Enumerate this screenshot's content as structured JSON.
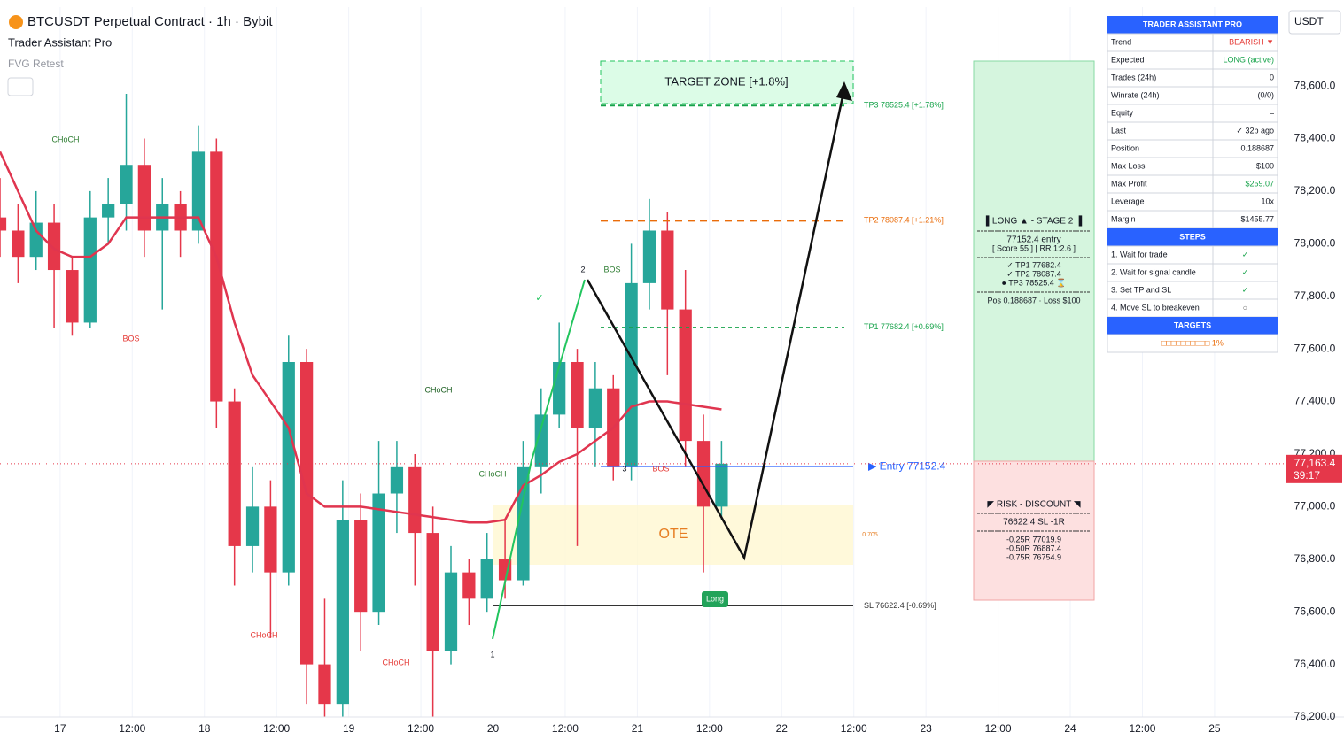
{
  "chart_data": {
    "type": "candlestick",
    "title": "BTCUSDT Perpetual Contract · 1h · Bybit",
    "subtitle": "Trader Assistant Pro",
    "indicator": "FVG Retest",
    "currency": "USDT",
    "x": [
      -10,
      -7,
      -4,
      -1,
      2,
      5,
      8,
      11,
      14,
      17,
      20,
      23,
      26,
      29,
      32,
      35,
      38,
      41,
      44,
      47,
      50,
      53,
      56,
      59,
      62,
      65,
      68,
      71,
      74,
      77,
      80,
      83,
      86,
      89,
      92,
      95,
      98,
      101,
      104,
      107,
      110
    ],
    "open": [
      78100,
      78050,
      77950,
      78080,
      77900,
      77700,
      78100,
      78150,
      78300,
      78050,
      78150,
      78050,
      78350,
      77400,
      76850,
      77000,
      76750,
      77550,
      76400,
      76250,
      76950,
      76600,
      77050,
      77150,
      76900,
      76450,
      76750,
      76650,
      76800,
      76720,
      77150,
      77350,
      77550,
      77300,
      77450,
      77150,
      77850,
      78050,
      77750,
      77250,
      77000
    ],
    "high": [
      78250,
      78150,
      78200,
      78150,
      77950,
      78200,
      78250,
      78570,
      78400,
      78250,
      78200,
      78450,
      78400,
      77450,
      77150,
      77100,
      77650,
      77600,
      76650,
      77100,
      77050,
      77250,
      77250,
      77200,
      77000,
      76850,
      76800,
      76900,
      76950,
      77250,
      77450,
      77700,
      77600,
      77550,
      77500,
      78000,
      78170,
      78120,
      77900,
      77350,
      77250
    ],
    "low": [
      77950,
      77850,
      77900,
      77680,
      77650,
      77680,
      78000,
      78050,
      77950,
      77750,
      77950,
      78000,
      77300,
      76700,
      76750,
      76500,
      76700,
      76250,
      76200,
      76200,
      76450,
      76550,
      76900,
      76700,
      76200,
      76400,
      76550,
      76600,
      76650,
      76700,
      77050,
      77300,
      76850,
      77150,
      77100,
      77100,
      77750,
      77500,
      77150,
      76750,
      76950
    ],
    "close": [
      78050,
      77950,
      78080,
      77900,
      77700,
      78100,
      78150,
      78300,
      78050,
      78150,
      78050,
      78350,
      77400,
      76850,
      77000,
      76750,
      77550,
      76400,
      76250,
      76950,
      76600,
      77050,
      77150,
      76900,
      76450,
      76750,
      76650,
      76800,
      76720,
      77150,
      77350,
      77550,
      77300,
      77450,
      77150,
      77850,
      78050,
      77750,
      77250,
      77000,
      77163.4
    ],
    "ma": {
      "color": "#e0354f",
      "values": [
        78350,
        78200,
        78050,
        77980,
        77950,
        77950,
        78000,
        78100,
        78100,
        78100,
        78100,
        78100,
        77950,
        77700,
        77500,
        77400,
        77300,
        77050,
        77000,
        77000,
        77000,
        76990,
        76980,
        76970,
        76960,
        76950,
        76940,
        76940,
        76950,
        77080,
        77120,
        77170,
        77200,
        77250,
        77300,
        77380,
        77400,
        77400,
        77390,
        77380,
        77370
      ]
    },
    "up_color": "#26a69a",
    "down_color": "#e5374a",
    "xlim": [
      -10,
      203.8
    ],
    "ylim": [
      76200,
      78900
    ],
    "xticks": [
      {
        "value": 0,
        "label": "17"
      },
      {
        "value": 12,
        "label": "12:00"
      },
      {
        "value": 24,
        "label": "18"
      },
      {
        "value": 36,
        "label": "12:00"
      },
      {
        "value": 48,
        "label": "19"
      },
      {
        "value": 60,
        "label": "12:00"
      },
      {
        "value": 72,
        "label": "20"
      },
      {
        "value": 84,
        "label": "12:00"
      },
      {
        "value": 96,
        "label": "21"
      },
      {
        "value": 108,
        "label": "12:00"
      },
      {
        "value": 120,
        "label": "22"
      },
      {
        "value": 132,
        "label": "12:00"
      },
      {
        "value": 144,
        "label": "23"
      },
      {
        "value": 156,
        "label": "12:00"
      },
      {
        "value": 168,
        "label": "24"
      },
      {
        "value": 180,
        "label": "12:00"
      },
      {
        "value": 192,
        "label": "25"
      }
    ],
    "yticks": [
      {
        "value": 76200,
        "label": "76,200.0"
      },
      {
        "value": 76400,
        "label": "76,400.0"
      },
      {
        "value": 76600,
        "label": "76,600.0"
      },
      {
        "value": 76800,
        "label": "76,800.0"
      },
      {
        "value": 77000,
        "label": "77,000.0"
      },
      {
        "value": 77200,
        "label": "77,200.0"
      },
      {
        "value": 77400,
        "label": "77,400.0"
      },
      {
        "value": 77600,
        "label": "77,600.0"
      },
      {
        "value": 77800,
        "label": "77,800.0"
      },
      {
        "value": 78000,
        "label": "78,000.0"
      },
      {
        "value": 78200,
        "label": "78,200.0"
      },
      {
        "value": 78400,
        "label": "78,400.0"
      },
      {
        "value": 78600,
        "label": "78,600.0"
      }
    ],
    "grid": true,
    "last_price": {
      "value": 77163.4,
      "label": "77,163.4"
    },
    "countdown": "39:17",
    "levels": [
      {
        "label": "TP3 78525.4 [+1.78%]",
        "value": 78525.4,
        "color": "#16a34a"
      },
      {
        "label": "TP2 78087.4 [+1.21%]",
        "value": 78087.4,
        "color": "#ea6c0a"
      },
      {
        "label": "TP1 77682.4 [+0.69%]",
        "value": 77682.4,
        "color": "#16a34a"
      },
      {
        "label": "▶ Entry 77152.4",
        "value": 77152.4,
        "color": "#2962ff"
      },
      {
        "label": "SL 76622.4 [-0.69%]",
        "value": 76622.4,
        "color": "#333333"
      }
    ],
    "annotations": {
      "target": "TARGET ZONE [+1.8%]",
      "ote": "OTE",
      "fib": "0.705",
      "long": "Long",
      "choch": "CHoCH",
      "bos": "BOS",
      "p1": "1",
      "p2": "2",
      "p3": "3",
      "check": "✓"
    },
    "long_box": [
      "▌LONG ▲ - STAGE 2 ▐",
      "77152.4  entry",
      "[ Score 55 ] [ RR 1:2.6 ]",
      "✓ TP1   77682.4",
      "✓ TP2   78087.4",
      "● TP3   78525.4 ⌛",
      "Pos 0.188687 · Loss $100"
    ],
    "risk_box": [
      "◤ RISK - DISCOUNT ◥",
      "76622.4 SL  -1R",
      "-0.25R  77019.9",
      "-0.50R  76887.4",
      "-0.75R  76754.9"
    ]
  },
  "panel": {
    "title": "TRADER ASSISTANT PRO",
    "rows": [
      [
        "Trend",
        "BEARISH ▼"
      ],
      [
        "Expected",
        "LONG (active)"
      ],
      [
        "Trades (24h)",
        "0"
      ],
      [
        "Winrate (24h)",
        "– (0/0)"
      ],
      [
        "Equity",
        "–"
      ],
      [
        "Last",
        "✓ 32b ago"
      ],
      [
        "Position",
        "0.188687"
      ],
      [
        "Max Loss",
        "$100"
      ],
      [
        "Max Profit",
        "$259.07"
      ],
      [
        "Leverage",
        "10x"
      ],
      [
        "Margin",
        "$1455.77"
      ]
    ],
    "steps_title": "STEPS",
    "steps": [
      [
        "1. Wait for trade",
        "✓"
      ],
      [
        "2. Wait for signal candle",
        "✓"
      ],
      [
        "3. Set TP and SL",
        "✓"
      ],
      [
        "4. Move SL to breakeven",
        "○"
      ]
    ],
    "targets_title": "TARGETS",
    "targets_progress": "□□□□□□□□□□ 1%"
  }
}
